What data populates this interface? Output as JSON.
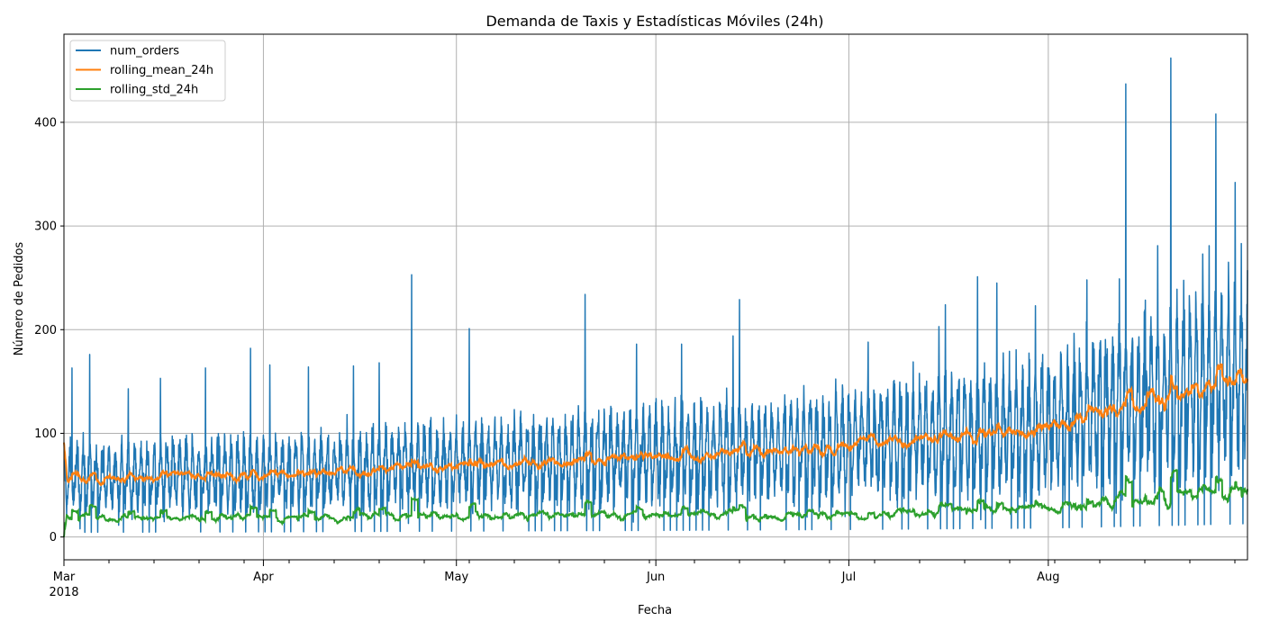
{
  "chart_data": {
    "type": "line",
    "title": "Demanda de Taxis y Estadísticas Móviles (24h)",
    "xlabel": "Fecha",
    "ylabel": "Número de Pedidos",
    "x_range": [
      "2018-03-01",
      "2018-08-31T23:00"
    ],
    "ylim": [
      -22,
      485
    ],
    "y_ticks": [
      0,
      100,
      200,
      300,
      400
    ],
    "x_ticks": [
      {
        "date": "2018-03-01",
        "label": "Mar",
        "sublabel": "2018"
      },
      {
        "date": "2018-04-01",
        "label": "Apr",
        "sublabel": ""
      },
      {
        "date": "2018-05-01",
        "label": "May",
        "sublabel": ""
      },
      {
        "date": "2018-06-01",
        "label": "Jun",
        "sublabel": ""
      },
      {
        "date": "2018-07-01",
        "label": "Jul",
        "sublabel": ""
      },
      {
        "date": "2018-08-01",
        "label": "Aug",
        "sublabel": ""
      }
    ],
    "grid": true,
    "legend_position": "top-left",
    "sampling": "hourly",
    "series": [
      {
        "name": "num_orders",
        "color": "#1f77b4",
        "trend_points": [
          {
            "date": "2018-03-01",
            "value": 56
          },
          {
            "date": "2018-04-01",
            "value": 61
          },
          {
            "date": "2018-05-01",
            "value": 70
          },
          {
            "date": "2018-06-01",
            "value": 79
          },
          {
            "date": "2018-07-01",
            "value": 90
          },
          {
            "date": "2018-08-01",
            "value": 108
          },
          {
            "date": "2018-08-31T23:00",
            "value": 160
          }
        ],
        "spikes": [
          {
            "date": "2018-03-02T06:00",
            "value": 163
          },
          {
            "date": "2018-03-05T00:00",
            "value": 176
          },
          {
            "date": "2018-03-11T00:00",
            "value": 143
          },
          {
            "date": "2018-03-16T00:00",
            "value": 153
          },
          {
            "date": "2018-03-23T00:00",
            "value": 163
          },
          {
            "date": "2018-03-30T00:00",
            "value": 182
          },
          {
            "date": "2018-04-02T00:00",
            "value": 166
          },
          {
            "date": "2018-04-08T00:00",
            "value": 164
          },
          {
            "date": "2018-04-15T00:00",
            "value": 165
          },
          {
            "date": "2018-04-19T00:00",
            "value": 168
          },
          {
            "date": "2018-04-24T01:00",
            "value": 253
          },
          {
            "date": "2018-05-03T00:00",
            "value": 201
          },
          {
            "date": "2018-05-21T00:00",
            "value": 234
          },
          {
            "date": "2018-05-29T00:00",
            "value": 186
          },
          {
            "date": "2018-06-05T00:00",
            "value": 186
          },
          {
            "date": "2018-06-13T00:00",
            "value": 194
          },
          {
            "date": "2018-06-14T00:00",
            "value": 229
          },
          {
            "date": "2018-07-04T00:00",
            "value": 188
          },
          {
            "date": "2018-07-15T00:00",
            "value": 203
          },
          {
            "date": "2018-07-16T00:00",
            "value": 224
          },
          {
            "date": "2018-07-21T00:00",
            "value": 251
          },
          {
            "date": "2018-07-24T00:00",
            "value": 245
          },
          {
            "date": "2018-07-30T00:00",
            "value": 223
          },
          {
            "date": "2018-08-07T00:00",
            "value": 248
          },
          {
            "date": "2018-08-12T01:00",
            "value": 249
          },
          {
            "date": "2018-08-13T01:00",
            "value": 437
          },
          {
            "date": "2018-08-16T00:00",
            "value": 219
          },
          {
            "date": "2018-08-18T00:00",
            "value": 281
          },
          {
            "date": "2018-08-20T01:00",
            "value": 462
          },
          {
            "date": "2018-08-21T00:00",
            "value": 239
          },
          {
            "date": "2018-08-25T00:00",
            "value": 273
          },
          {
            "date": "2018-08-26T00:00",
            "value": 281
          },
          {
            "date": "2018-08-27T01:00",
            "value": 408
          },
          {
            "date": "2018-08-28T00:00",
            "value": 233
          },
          {
            "date": "2018-08-29T00:00",
            "value": 265
          },
          {
            "date": "2018-08-30T01:00",
            "value": 342
          },
          {
            "date": "2018-08-31T00:00",
            "value": 283
          }
        ]
      },
      {
        "name": "rolling_mean_24h",
        "color": "#ff7f0e",
        "trend_points": [
          {
            "date": "2018-03-01",
            "value": 56
          },
          {
            "date": "2018-04-01",
            "value": 61
          },
          {
            "date": "2018-05-01",
            "value": 70
          },
          {
            "date": "2018-06-01",
            "value": 79
          },
          {
            "date": "2018-07-01",
            "value": 90
          },
          {
            "date": "2018-08-01",
            "value": 108
          },
          {
            "date": "2018-08-31T23:00",
            "value": 165
          }
        ]
      },
      {
        "name": "rolling_std_24h",
        "color": "#2ca02c",
        "trend_points": [
          {
            "date": "2018-03-01",
            "value": 28
          },
          {
            "date": "2018-04-01",
            "value": 28
          },
          {
            "date": "2018-05-01",
            "value": 32
          },
          {
            "date": "2018-06-01",
            "value": 32
          },
          {
            "date": "2018-07-01",
            "value": 33
          },
          {
            "date": "2018-08-01",
            "value": 42
          },
          {
            "date": "2018-08-31T23:00",
            "value": 65
          }
        ]
      }
    ]
  }
}
